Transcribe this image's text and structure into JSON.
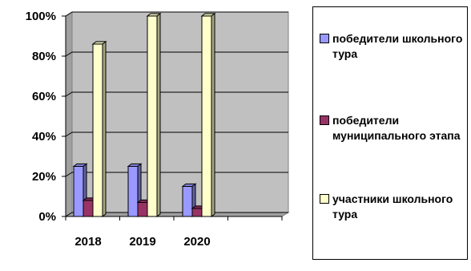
{
  "chart_data": {
    "type": "bar",
    "style": "3d",
    "categories": [
      "2018",
      "2019",
      "2020"
    ],
    "series": [
      {
        "name": "победители школьного тура",
        "color": "#9999ff",
        "values": [
          25,
          25,
          15
        ]
      },
      {
        "name": "победители муниципального этапа",
        "color": "#993366",
        "values": [
          8,
          7,
          4
        ]
      },
      {
        "name": "участники школьного тура",
        "color": "#ffffcc",
        "values": [
          86,
          100,
          100
        ]
      }
    ],
    "yticks": [
      "0%",
      "20%",
      "40%",
      "60%",
      "80%",
      "100%"
    ],
    "ylim": [
      0,
      100
    ],
    "grid": true,
    "wall_color": "#c0c0c0",
    "legend_position": "right"
  }
}
